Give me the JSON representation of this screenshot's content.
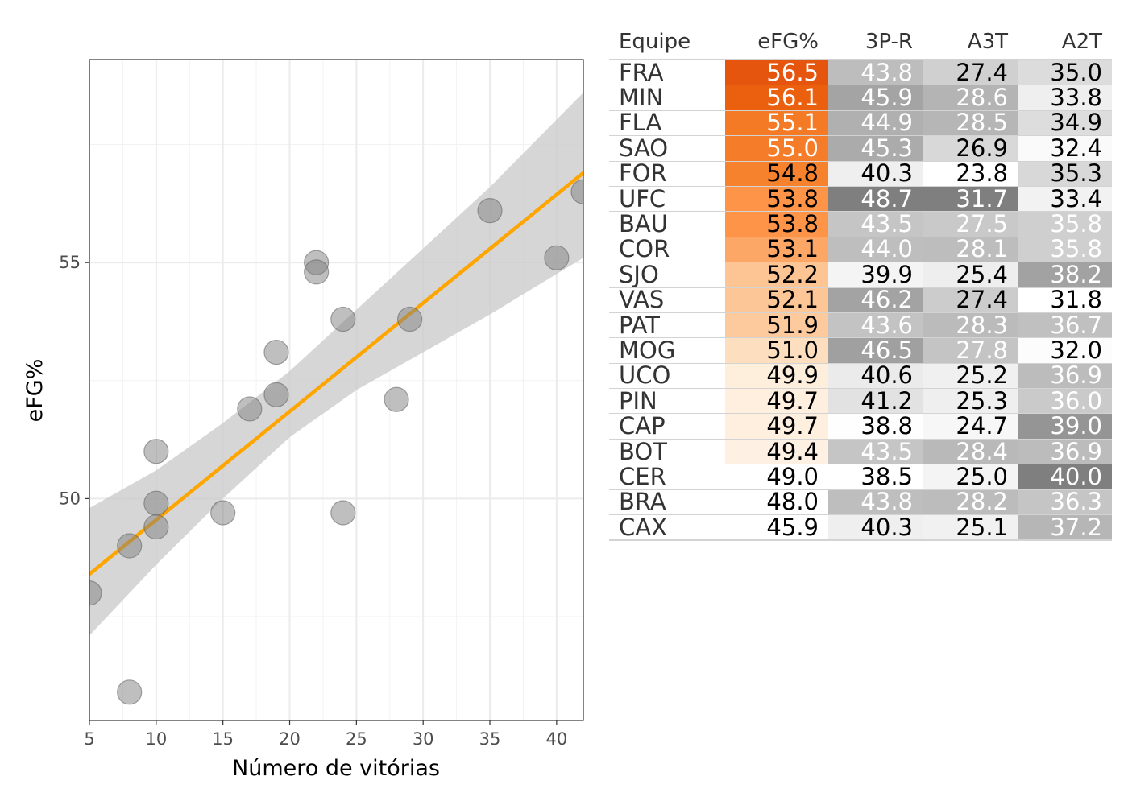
{
  "chart_data": {
    "type": "scatter",
    "xlabel": "Número de vitórias",
    "ylabel": "eFG%",
    "xlim": [
      5,
      42
    ],
    "ylim": [
      45.3,
      59.3
    ],
    "x_ticks": [
      5,
      10,
      15,
      20,
      25,
      30,
      35,
      40
    ],
    "x_ticks_label": [
      "5",
      "10",
      "15",
      "20",
      "25",
      "30",
      "35",
      "40"
    ],
    "y_ticks": [
      50,
      55
    ],
    "y_ticks_label": [
      "50",
      "55"
    ],
    "x_minor_ticks": [
      7.5,
      12.5,
      17.5,
      22.5,
      27.5,
      32.5,
      37.5
    ],
    "y_minor_ticks": [
      47.5,
      52.5,
      57.5
    ],
    "grid": true,
    "points": [
      {
        "x": 42,
        "y": 56.5
      },
      {
        "x": 35,
        "y": 56.1
      },
      {
        "x": 40,
        "y": 55.1
      },
      {
        "x": 22,
        "y": 55.0
      },
      {
        "x": 22,
        "y": 54.8
      },
      {
        "x": 24,
        "y": 53.8
      },
      {
        "x": 29,
        "y": 53.8
      },
      {
        "x": 19,
        "y": 53.1
      },
      {
        "x": 28,
        "y": 52.1
      },
      {
        "x": 19,
        "y": 52.2
      },
      {
        "x": 17,
        "y": 51.9
      },
      {
        "x": 10,
        "y": 51.0
      },
      {
        "x": 10,
        "y": 49.9
      },
      {
        "x": 15,
        "y": 49.7
      },
      {
        "x": 24,
        "y": 49.7
      },
      {
        "x": 10,
        "y": 49.4
      },
      {
        "x": 8,
        "y": 49.0
      },
      {
        "x": 5,
        "y": 48.0
      },
      {
        "x": 8,
        "y": 45.9
      }
    ],
    "point_color": "#808080",
    "regression_line": {
      "x": [
        5,
        42
      ],
      "y": [
        48.4,
        56.9
      ],
      "color": "#FFA500"
    },
    "confidence_band": {
      "x": [
        5,
        10,
        15,
        20,
        25,
        30,
        35,
        42
      ],
      "lower": [
        47.1,
        48.6,
        50.0,
        51.3,
        52.3,
        53.1,
        53.9,
        55.1
      ],
      "upper": [
        49.8,
        50.6,
        51.6,
        52.7,
        54.0,
        55.3,
        56.6,
        58.6
      ],
      "color": "#cccccc"
    }
  },
  "table": {
    "headers": [
      "Equipe",
      "eFG%",
      "3P-R",
      "A3T",
      "A2T"
    ],
    "rows": [
      {
        "team": "FRA",
        "values": [
          "56.5",
          "43.8",
          "27.4",
          "35.0"
        ],
        "bg": [
          "#E6550D",
          "#BDBDBD",
          "#D0D0D0",
          "#DCDCDC"
        ],
        "fg": [
          "#ffffff",
          "#ffffff",
          "#000000",
          "#000000"
        ]
      },
      {
        "team": "MIN",
        "values": [
          "56.1",
          "45.9",
          "28.6",
          "33.8"
        ],
        "bg": [
          "#EA600F",
          "#A4A4A4",
          "#B4B4B4",
          "#EFEFEF"
        ],
        "fg": [
          "#ffffff",
          "#ffffff",
          "#ffffff",
          "#000000"
        ]
      },
      {
        "team": "FLA",
        "values": [
          "55.1",
          "44.9",
          "28.5",
          "34.9"
        ],
        "bg": [
          "#F47A25",
          "#B0B0B0",
          "#B6B6B6",
          "#DDDDDD"
        ],
        "fg": [
          "#ffffff",
          "#ffffff",
          "#ffffff",
          "#000000"
        ]
      },
      {
        "team": "SAO",
        "values": [
          "55.0",
          "45.3",
          "26.9",
          "32.4"
        ],
        "bg": [
          "#F57C28",
          "#ABABAB",
          "#D8D8D8",
          "#FAFAFA"
        ],
        "fg": [
          "#ffffff",
          "#ffffff",
          "#000000",
          "#000000"
        ]
      },
      {
        "team": "FOR",
        "values": [
          "54.8",
          "40.3",
          "23.8",
          "35.3"
        ],
        "bg": [
          "#F7822E",
          "#EFEFEF",
          "#FFFFFF",
          "#D8D8D8"
        ],
        "fg": [
          "#000000",
          "#000000",
          "#000000",
          "#000000"
        ]
      },
      {
        "team": "UFC",
        "values": [
          "53.8",
          "48.7",
          "31.7",
          "33.4"
        ],
        "bg": [
          "#FD9448",
          "#7F7F7F",
          "#7F7F7F",
          "#F2F2F2"
        ],
        "fg": [
          "#000000",
          "#ffffff",
          "#ffffff",
          "#000000"
        ]
      },
      {
        "team": "BAU",
        "values": [
          "53.8",
          "43.5",
          "27.5",
          "35.8"
        ],
        "bg": [
          "#FD9448",
          "#C5C5C5",
          "#C9C9C9",
          "#CFCFCF"
        ],
        "fg": [
          "#000000",
          "#ffffff",
          "#ffffff",
          "#ffffff"
        ]
      },
      {
        "team": "COR",
        "values": [
          "53.1",
          "44.0",
          "28.1",
          "35.8"
        ],
        "bg": [
          "#FDA767",
          "#BEBEBE",
          "#BDBDBD",
          "#CFCFCF"
        ],
        "fg": [
          "#000000",
          "#ffffff",
          "#ffffff",
          "#ffffff"
        ]
      },
      {
        "team": "SJO",
        "values": [
          "52.2",
          "39.9",
          "25.4",
          "38.2"
        ],
        "bg": [
          "#FDC494",
          "#F4F4F4",
          "#EEEEEE",
          "#A2A2A2"
        ],
        "fg": [
          "#000000",
          "#000000",
          "#000000",
          "#ffffff"
        ]
      },
      {
        "team": "VAS",
        "values": [
          "52.1",
          "46.2",
          "27.4",
          "31.8"
        ],
        "bg": [
          "#FDC696",
          "#A3A3A3",
          "#CCCCCC",
          "#FFFFFF"
        ],
        "fg": [
          "#000000",
          "#ffffff",
          "#000000",
          "#000000"
        ]
      },
      {
        "team": "PAT",
        "values": [
          "51.9",
          "43.6",
          "28.3",
          "36.7"
        ],
        "bg": [
          "#FDCA9E",
          "#C3C3C3",
          "#BBBBBB",
          "#C0C0C0"
        ],
        "fg": [
          "#000000",
          "#ffffff",
          "#ffffff",
          "#ffffff"
        ]
      },
      {
        "team": "MOG",
        "values": [
          "51.0",
          "46.5",
          "27.8",
          "32.0"
        ],
        "bg": [
          "#FDDFC0",
          "#A0A0A0",
          "#C4C4C4",
          "#FCFCFC"
        ],
        "fg": [
          "#000000",
          "#ffffff",
          "#ffffff",
          "#000000"
        ]
      },
      {
        "team": "UCO",
        "values": [
          "49.9",
          "40.6",
          "25.2",
          "36.9"
        ],
        "bg": [
          "#FEEEDC",
          "#EBEBEB",
          "#F0F0F0",
          "#BCBCBC"
        ],
        "fg": [
          "#000000",
          "#000000",
          "#000000",
          "#ffffff"
        ]
      },
      {
        "team": "PIN",
        "values": [
          "49.7",
          "41.2",
          "25.3",
          "36.0"
        ],
        "bg": [
          "#FEEFDF",
          "#E2E2E2",
          "#EFEFEF",
          "#CACACA"
        ],
        "fg": [
          "#000000",
          "#000000",
          "#000000",
          "#ffffff"
        ]
      },
      {
        "team": "CAP",
        "values": [
          "49.7",
          "38.8",
          "24.7",
          "39.0"
        ],
        "bg": [
          "#FEEFDF",
          "#FEFEFE",
          "#F7F7F7",
          "#959595"
        ],
        "fg": [
          "#000000",
          "#000000",
          "#000000",
          "#ffffff"
        ]
      },
      {
        "team": "BOT",
        "values": [
          "49.4",
          "43.5",
          "28.4",
          "36.9"
        ],
        "bg": [
          "#FEF1E3",
          "#C5C5C5",
          "#B9B9B9",
          "#BCBCBC"
        ],
        "fg": [
          "#000000",
          "#ffffff",
          "#ffffff",
          "#ffffff"
        ]
      },
      {
        "team": "CER",
        "values": [
          "49.0",
          "38.5",
          "25.0",
          "40.0"
        ],
        "bg": [
          "#FFFFFF",
          "#FFFFFF",
          "#F4F4F4",
          "#7F7F7F"
        ],
        "fg": [
          "#000000",
          "#000000",
          "#000000",
          "#ffffff"
        ]
      },
      {
        "team": "BRA",
        "values": [
          "48.0",
          "43.8",
          "28.2",
          "36.3"
        ],
        "bg": [
          "#FFFFFF",
          "#BEBEBE",
          "#BCBCBC",
          "#C5C5C5"
        ],
        "fg": [
          "#000000",
          "#ffffff",
          "#ffffff",
          "#ffffff"
        ]
      },
      {
        "team": "CAX",
        "values": [
          "45.9",
          "40.3",
          "25.1",
          "37.2"
        ],
        "bg": [
          "#FFFFFF",
          "#EFEFEF",
          "#F1F1F1",
          "#B6B6B6"
        ],
        "fg": [
          "#000000",
          "#000000",
          "#000000",
          "#ffffff"
        ]
      }
    ]
  }
}
